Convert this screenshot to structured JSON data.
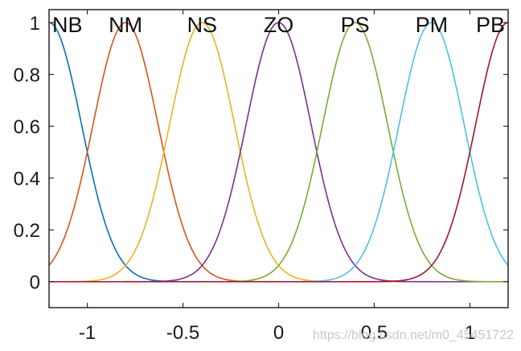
{
  "chart_data": {
    "type": "line",
    "title": "",
    "xlabel": "",
    "ylabel": "",
    "xlim": [
      -1.2,
      1.2
    ],
    "ylim": [
      -0.1,
      1.05
    ],
    "x_ticks": [
      -1,
      -0.5,
      0,
      0.5,
      1
    ],
    "x_tick_labels": [
      "-1",
      "-0.5",
      "0",
      "0.5",
      "1"
    ],
    "y_ticks": [
      0,
      0.2,
      0.4,
      0.6,
      0.8,
      1
    ],
    "y_tick_labels": [
      "0",
      "0.2",
      "0.4",
      "0.6",
      "0.8",
      "1"
    ],
    "grid": false,
    "legend": "none",
    "curve_shape": "gaussian",
    "sigma": 0.17,
    "series": [
      {
        "name": "NB",
        "center": -1.2,
        "color": "#0072BD"
      },
      {
        "name": "NM",
        "center": -0.8,
        "color": "#D95319"
      },
      {
        "name": "NS",
        "center": -0.4,
        "color": "#EDB120"
      },
      {
        "name": "ZO",
        "center": 0.0,
        "color": "#7E2F8E"
      },
      {
        "name": "PS",
        "center": 0.4,
        "color": "#77AC30"
      },
      {
        "name": "PM",
        "center": 0.8,
        "color": "#4DBEEE"
      },
      {
        "name": "PB",
        "center": 1.2,
        "color": "#A2142F"
      }
    ],
    "watermark": "https://blog.csdn.net/m0_45451722"
  }
}
